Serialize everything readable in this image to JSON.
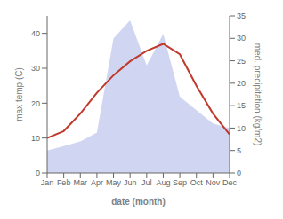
{
  "chart_data": {
    "type": "line",
    "categories": [
      "Jan",
      "Feb",
      "Mar",
      "Apr",
      "May",
      "Jun",
      "Jul",
      "Aug",
      "Sep",
      "Oct",
      "Nov",
      "Dec"
    ],
    "series": [
      {
        "type": "area",
        "axis": "y2",
        "color": "#aab4e8",
        "values": [
          5,
          6,
          7,
          9,
          30,
          34,
          24,
          31,
          17,
          14,
          11,
          10
        ]
      },
      {
        "type": "line",
        "axis": "y",
        "color": "#c0392b",
        "values": [
          10,
          12,
          17,
          23,
          28,
          32,
          35,
          37,
          34,
          25,
          17,
          11
        ]
      }
    ],
    "xlabel": "date (month)",
    "ylabel": "max temp (C)",
    "y2label": "med. precipitation (kg/m2)",
    "ylim": [
      0,
      45
    ],
    "yticks": [
      0,
      10,
      20,
      30,
      40
    ],
    "y2lim": [
      0,
      35
    ],
    "y2ticks": [
      0,
      5,
      10,
      15,
      20,
      25,
      30,
      35
    ],
    "grid": false
  }
}
